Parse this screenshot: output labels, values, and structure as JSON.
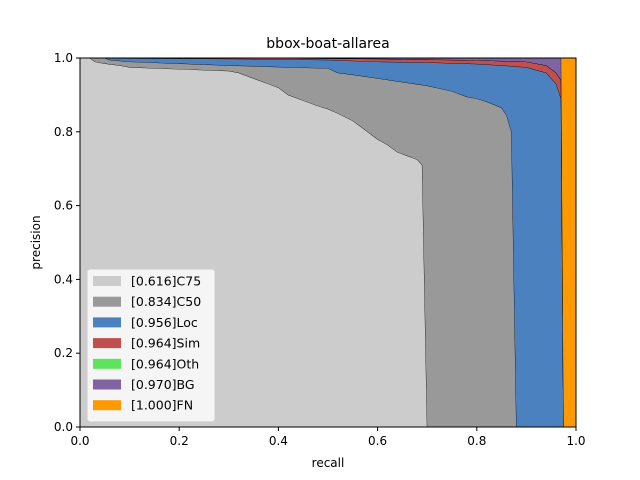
{
  "chart_data": {
    "type": "area",
    "title": "bbox-boat-allarea",
    "xlabel": "recall",
    "ylabel": "precision",
    "xlim": [
      0,
      1
    ],
    "ylim": [
      0,
      1
    ],
    "xticks": [
      "0.0",
      "0.2",
      "0.4",
      "0.6",
      "0.8",
      "1.0"
    ],
    "yticks": [
      "0.0",
      "0.2",
      "0.4",
      "0.6",
      "0.8",
      "1.0"
    ],
    "grid": false,
    "legend_position": "lower-left",
    "series": [
      {
        "name": "[0.616]C75",
        "color": "#cccccc",
        "points": [
          [
            0,
            1
          ],
          [
            0.02,
            1
          ],
          [
            0.03,
            0.99
          ],
          [
            0.05,
            0.985
          ],
          [
            0.08,
            0.98
          ],
          [
            0.1,
            0.975
          ],
          [
            0.2,
            0.97
          ],
          [
            0.3,
            0.965
          ],
          [
            0.32,
            0.96
          ],
          [
            0.33,
            0.955
          ],
          [
            0.36,
            0.94
          ],
          [
            0.38,
            0.93
          ],
          [
            0.4,
            0.92
          ],
          [
            0.42,
            0.9
          ],
          [
            0.45,
            0.885
          ],
          [
            0.48,
            0.87
          ],
          [
            0.5,
            0.862
          ],
          [
            0.52,
            0.85
          ],
          [
            0.55,
            0.83
          ],
          [
            0.57,
            0.81
          ],
          [
            0.6,
            0.78
          ],
          [
            0.62,
            0.765
          ],
          [
            0.64,
            0.745
          ],
          [
            0.66,
            0.735
          ],
          [
            0.68,
            0.725
          ],
          [
            0.69,
            0.71
          ],
          [
            0.7,
            0
          ]
        ]
      },
      {
        "name": "[0.834]C50",
        "color": "#999999",
        "points": [
          [
            0,
            1
          ],
          [
            0.05,
            1
          ],
          [
            0.06,
            0.995
          ],
          [
            0.1,
            0.99
          ],
          [
            0.2,
            0.985
          ],
          [
            0.3,
            0.98
          ],
          [
            0.4,
            0.976
          ],
          [
            0.5,
            0.972
          ],
          [
            0.52,
            0.96
          ],
          [
            0.55,
            0.955
          ],
          [
            0.6,
            0.945
          ],
          [
            0.65,
            0.935
          ],
          [
            0.7,
            0.925
          ],
          [
            0.75,
            0.91
          ],
          [
            0.78,
            0.895
          ],
          [
            0.8,
            0.89
          ],
          [
            0.82,
            0.882
          ],
          [
            0.85,
            0.865
          ],
          [
            0.86,
            0.845
          ],
          [
            0.87,
            0.8
          ],
          [
            0.88,
            0
          ]
        ]
      },
      {
        "name": "[0.956]Loc",
        "color": "#4c81bf",
        "points": [
          [
            0,
            1
          ],
          [
            0.3,
            0.998
          ],
          [
            0.5,
            0.995
          ],
          [
            0.6,
            0.99
          ],
          [
            0.7,
            0.988
          ],
          [
            0.8,
            0.984
          ],
          [
            0.85,
            0.98
          ],
          [
            0.9,
            0.975
          ],
          [
            0.94,
            0.96
          ],
          [
            0.96,
            0.93
          ],
          [
            0.97,
            0.89
          ],
          [
            0.975,
            0
          ]
        ]
      },
      {
        "name": "[0.964]Sim",
        "color": "#c0504d",
        "points": [
          [
            0,
            1
          ],
          [
            0.4,
            1
          ],
          [
            0.6,
            0.998
          ],
          [
            0.7,
            0.996
          ],
          [
            0.8,
            0.994
          ],
          [
            0.9,
            0.99
          ],
          [
            0.94,
            0.98
          ],
          [
            0.96,
            0.96
          ],
          [
            0.97,
            0.94
          ],
          [
            0.975,
            0
          ]
        ]
      },
      {
        "name": "[0.964]Oth",
        "color": "#5fe35c",
        "points": [
          [
            0,
            1
          ],
          [
            0.4,
            1
          ],
          [
            0.6,
            0.998
          ],
          [
            0.7,
            0.996
          ],
          [
            0.8,
            0.994
          ],
          [
            0.9,
            0.99
          ],
          [
            0.94,
            0.98
          ],
          [
            0.96,
            0.96
          ],
          [
            0.97,
            0.94
          ],
          [
            0.975,
            0
          ]
        ]
      },
      {
        "name": "[0.970]BG",
        "color": "#8064a2",
        "points": [
          [
            0,
            1
          ],
          [
            0.97,
            1
          ],
          [
            0.975,
            0
          ]
        ]
      },
      {
        "name": "[1.000]FN",
        "color": "#ff9900",
        "points": [
          [
            0,
            1
          ],
          [
            1,
            1
          ],
          [
            1,
            0
          ]
        ]
      }
    ]
  }
}
